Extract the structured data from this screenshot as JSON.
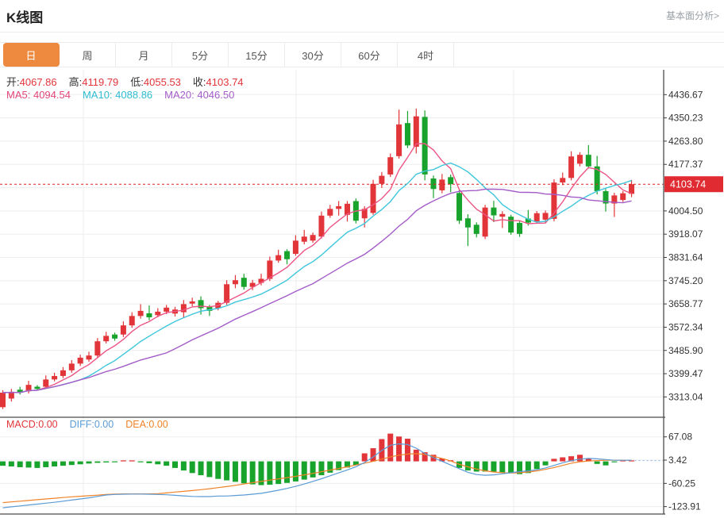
{
  "header": {
    "title": "K线图",
    "link_label": "基本面分析>"
  },
  "tabs": {
    "items": [
      "日",
      "周",
      "月",
      "5分",
      "15分",
      "30分",
      "60分",
      "4时"
    ],
    "active_index": 0
  },
  "readout": {
    "ohlc": [
      {
        "label": "开:",
        "value": "4067.86"
      },
      {
        "label": "高:",
        "value": "4119.79"
      },
      {
        "label": "低:",
        "value": "4055.53"
      },
      {
        "label": "收:",
        "value": "4103.74"
      }
    ],
    "ma": [
      {
        "label": "MA5: ",
        "value": "4094.54",
        "color": "#e0447c"
      },
      {
        "label": "MA10: ",
        "value": "4088.86",
        "color": "#2fbcd2"
      },
      {
        "label": "MA20: ",
        "value": "4046.50",
        "color": "#a45cc8"
      }
    ],
    "macd": [
      {
        "label": "MACD:",
        "value": "0.00",
        "color": "#e23539"
      },
      {
        "label": "DIFF:",
        "value": "0.00",
        "color": "#5b9bd5"
      },
      {
        "label": "DEA:",
        "value": "0.00",
        "color": "#f08329"
      }
    ]
  },
  "current_price": {
    "value": "4103.74",
    "line_color": "#e02020",
    "badge_bg": "#df2b31"
  },
  "chart_data": {
    "type": "candlestick+macd",
    "colors": {
      "up": "#e23539",
      "down": "#18a42c",
      "ma5": "#ec5584",
      "ma10": "#3ec6dc",
      "ma20": "#a45cc8",
      "diff": "#5b9bd5",
      "dea": "#f08329"
    },
    "price_axis": {
      "tick_labels": [
        "4436.67",
        "4350.23",
        "4263.80",
        "4177.37",
        "4004.50",
        "3918.07",
        "3831.64",
        "3745.20",
        "3658.77",
        "3572.34",
        "3485.90",
        "3399.47",
        "3313.04"
      ],
      "tick_values": [
        4436.67,
        4350.23,
        4263.8,
        4177.37,
        4004.5,
        3918.07,
        3831.64,
        3745.2,
        3658.77,
        3572.34,
        3485.9,
        3399.47,
        3313.04
      ],
      "hidden_grid_value": 4090.93
    },
    "macd_axis": {
      "tick_labels": [
        "67.08",
        "3.42",
        "-60.25",
        "-123.91"
      ],
      "tick_values": [
        67.08,
        3.42,
        -60.25,
        -123.91
      ]
    },
    "ma_periods": [
      5,
      10,
      20
    ],
    "candles_ohlc": [
      [
        3275,
        3338,
        3268,
        3329
      ],
      [
        3307,
        3343,
        3296,
        3331
      ],
      [
        3340,
        3351,
        3322,
        3329
      ],
      [
        3334,
        3373,
        3326,
        3358
      ],
      [
        3351,
        3357,
        3337,
        3343
      ],
      [
        3351,
        3393,
        3343,
        3378
      ],
      [
        3378,
        3403,
        3371,
        3391
      ],
      [
        3391,
        3424,
        3383,
        3412
      ],
      [
        3412,
        3450,
        3403,
        3437
      ],
      [
        3437,
        3470,
        3428,
        3459
      ],
      [
        3452,
        3481,
        3444,
        3467
      ],
      [
        3467,
        3532,
        3458,
        3520
      ],
      [
        3520,
        3555,
        3512,
        3540
      ],
      [
        3545,
        3552,
        3522,
        3530
      ],
      [
        3545,
        3594,
        3536,
        3579
      ],
      [
        3579,
        3628,
        3570,
        3614
      ],
      [
        3614,
        3658,
        3604,
        3633
      ],
      [
        3624,
        3653,
        3598,
        3609
      ],
      [
        3617,
        3643,
        3609,
        3630
      ],
      [
        3630,
        3655,
        3621,
        3645
      ],
      [
        3623,
        3648,
        3612,
        3638
      ],
      [
        3628,
        3673,
        3609,
        3658
      ],
      [
        3660,
        3682,
        3650,
        3668
      ],
      [
        3673,
        3687,
        3619,
        3643
      ],
      [
        3648,
        3655,
        3614,
        3633
      ],
      [
        3643,
        3670,
        3635,
        3663
      ],
      [
        3663,
        3747,
        3655,
        3732
      ],
      [
        3732,
        3766,
        3717,
        3747
      ],
      [
        3756,
        3771,
        3712,
        3722
      ],
      [
        3722,
        3748,
        3710,
        3737
      ],
      [
        3737,
        3771,
        3728,
        3752
      ],
      [
        3752,
        3835,
        3744,
        3820
      ],
      [
        3820,
        3860,
        3812,
        3840
      ],
      [
        3855,
        3862,
        3806,
        3825
      ],
      [
        3845,
        3914,
        3838,
        3894
      ],
      [
        3890,
        3934,
        3880,
        3909
      ],
      [
        3894,
        3924,
        3886,
        3915
      ],
      [
        3909,
        4002,
        3902,
        3987
      ],
      [
        3987,
        4027,
        3979,
        4012
      ],
      [
        4012,
        4041,
        3987,
        4022
      ],
      [
        3990,
        4041,
        3965,
        4031
      ],
      [
        4041,
        4051,
        3958,
        3968
      ],
      [
        3977,
        4022,
        3943,
        4012
      ],
      [
        3997,
        4120,
        3990,
        4105
      ],
      [
        4105,
        4149,
        4090,
        4135
      ],
      [
        4140,
        4218,
        4131,
        4204
      ],
      [
        4208,
        4381,
        4199,
        4326
      ],
      [
        4331,
        4376,
        4238,
        4248
      ],
      [
        4243,
        4385,
        4218,
        4356
      ],
      [
        4354,
        4378,
        4118,
        4140
      ],
      [
        4125,
        4136,
        4052,
        4086
      ],
      [
        4081,
        4142,
        4070,
        4121
      ],
      [
        4130,
        4140,
        4074,
        4104
      ],
      [
        4071,
        4082,
        3956,
        3968
      ],
      [
        3977,
        3992,
        3874,
        3943
      ],
      [
        3953,
        3962,
        3906,
        3919
      ],
      [
        3909,
        4027,
        3900,
        4017
      ],
      [
        4017,
        4042,
        3963,
        3988
      ],
      [
        3983,
        4003,
        3941,
        3993
      ],
      [
        3983,
        3990,
        3916,
        3924
      ],
      [
        3960,
        3970,
        3908,
        3919
      ],
      [
        3976,
        4008,
        3950,
        3961
      ],
      [
        3966,
        4004,
        3958,
        3996
      ],
      [
        3972,
        4006,
        3960,
        3997
      ],
      [
        3975,
        4122,
        3966,
        4110
      ],
      [
        4110,
        4147,
        4100,
        4127
      ],
      [
        4127,
        4226,
        4118,
        4207
      ],
      [
        4180,
        4223,
        4170,
        4213
      ],
      [
        4213,
        4249,
        4162,
        4170
      ],
      [
        4170,
        4209,
        4066,
        4078
      ],
      [
        4078,
        4086,
        4002,
        4032
      ],
      [
        4032,
        4072,
        3982,
        4062
      ],
      [
        4045,
        4078,
        4038,
        4070
      ],
      [
        4067.86,
        4119.79,
        4055.53,
        4103.74
      ]
    ],
    "macd_hist": [
      -12,
      -14,
      -16,
      -17,
      -18,
      -16,
      -14,
      -12,
      -10,
      -8,
      -6,
      -4,
      -3,
      -2,
      1,
      1.5,
      -1,
      -5,
      -8,
      -12,
      -18,
      -25,
      -32,
      -38,
      -43,
      -48,
      -52,
      -56,
      -60,
      -63,
      -65,
      -64,
      -62,
      -59,
      -55,
      -50,
      -44,
      -38,
      -31,
      -24,
      -17,
      -10,
      22,
      36,
      61,
      76,
      68,
      62,
      32,
      25,
      18,
      8,
      3,
      -18,
      -25,
      -28,
      -28,
      -28,
      -30,
      -32,
      -35,
      -32,
      -21,
      -11,
      7,
      11,
      14,
      18,
      7,
      -7,
      -11,
      -2,
      0.5,
      0.5
    ],
    "diff": [
      -127,
      -124.5,
      -122,
      -119.5,
      -117,
      -114.5,
      -112,
      -109,
      -106,
      -103,
      -100,
      -96,
      -92,
      -90.5,
      -90,
      -89.5,
      -89.5,
      -90,
      -90.5,
      -91.5,
      -93,
      -94.5,
      -96,
      -96.5,
      -96.5,
      -95,
      -95,
      -93.5,
      -92,
      -90,
      -87.5,
      -83.5,
      -79,
      -74,
      -68.5,
      -62,
      -55,
      -47.5,
      -39.5,
      -31.5,
      -23.5,
      -15,
      -3,
      12,
      30,
      44,
      48,
      46,
      36,
      22,
      10,
      0,
      -10,
      -20,
      -30,
      -36,
      -38,
      -37,
      -34,
      -31,
      -28,
      -26,
      -23,
      -18,
      -11,
      -4,
      2,
      6,
      8,
      7,
      5,
      3,
      3,
      3
    ],
    "dea": [
      -113,
      -111,
      -109,
      -107,
      -105,
      -103,
      -101,
      -99,
      -97,
      -95.5,
      -94,
      -92.5,
      -90.5,
      -89.5,
      -89,
      -89,
      -89,
      -89,
      -88.5,
      -86.5,
      -84,
      -82,
      -80,
      -77.5,
      -75,
      -72,
      -69,
      -65.5,
      -62,
      -58.5,
      -55,
      -51.5,
      -48,
      -44.5,
      -41,
      -37,
      -33,
      -28.5,
      -24,
      -19.5,
      -15,
      -10,
      -5,
      0,
      6,
      12,
      17,
      20,
      21,
      19,
      14,
      8,
      1,
      -8,
      -15,
      -21,
      -26,
      -29,
      -31,
      -32,
      -31,
      -29,
      -26,
      -22,
      -17,
      -11,
      -5,
      -1,
      1,
      2,
      3,
      3,
      3,
      3
    ]
  }
}
